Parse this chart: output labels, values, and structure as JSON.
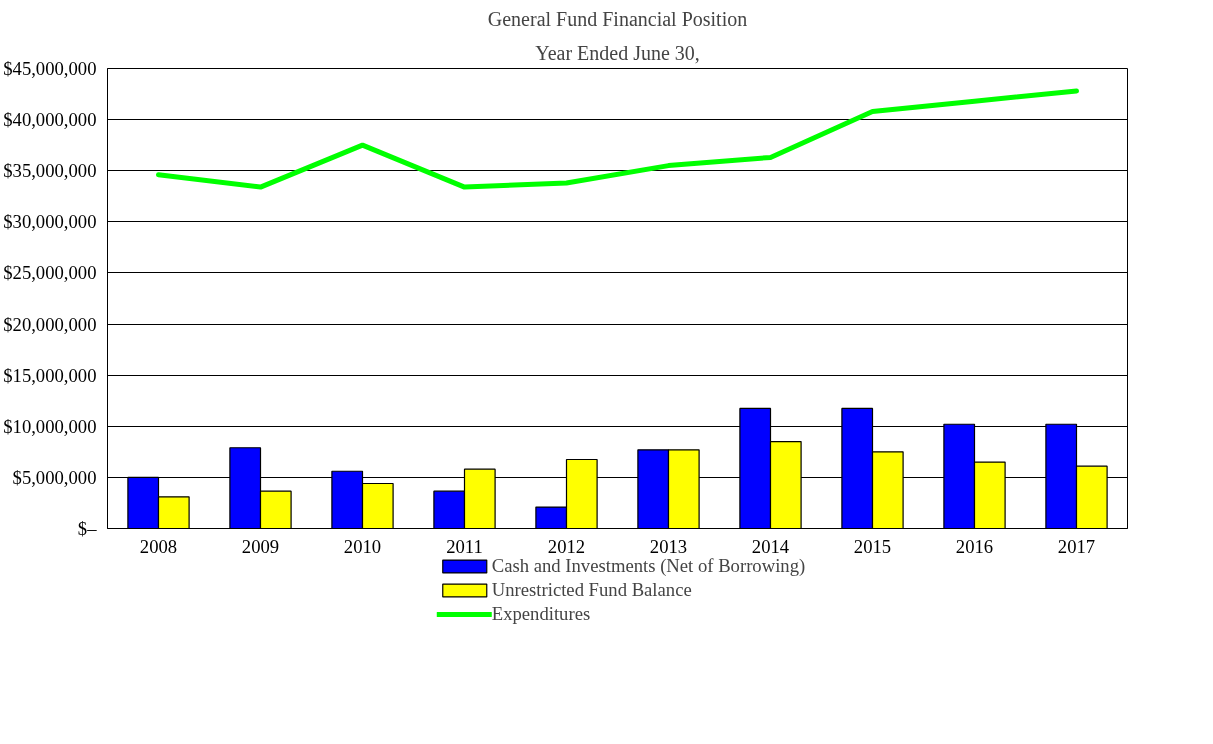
{
  "chart_data": {
    "type": "bar",
    "title": "General Fund Financial Position",
    "subtitle": "Year Ended June 30,",
    "categories": [
      "2008",
      "2009",
      "2010",
      "2011",
      "2012",
      "2013",
      "2014",
      "2015",
      "2016",
      "2017"
    ],
    "series": [
      {
        "name": "Cash and Investments (Net of Borrowing)",
        "color": "#0000ff",
        "values": [
          5000000,
          7900000,
          5600000,
          3650000,
          2100000,
          7700000,
          11750000,
          11750000,
          10200000,
          10200000
        ]
      },
      {
        "name": "Unrestricted Fund Balance",
        "color": "#ffff00",
        "values": [
          3100000,
          3650000,
          4400000,
          5800000,
          6750000,
          7700000,
          8500000,
          7500000,
          6500000,
          6100000
        ]
      },
      {
        "name": "Expenditures",
        "type": "line",
        "color": "#00ff00",
        "values": [
          34600000,
          33400000,
          37500000,
          33400000,
          33800000,
          35500000,
          36300000,
          40800000,
          41800000,
          42800000
        ]
      }
    ],
    "ylim": [
      0,
      45000000
    ],
    "yticks": [
      {
        "value": 0,
        "label": "$–"
      },
      {
        "value": 5000000,
        "label": "$5,000,000"
      },
      {
        "value": 10000000,
        "label": "$10,000,000"
      },
      {
        "value": 15000000,
        "label": "$15,000,000"
      },
      {
        "value": 20000000,
        "label": "$20,000,000"
      },
      {
        "value": 25000000,
        "label": "$25,000,000"
      },
      {
        "value": 30000000,
        "label": "$30,000,000"
      },
      {
        "value": 35000000,
        "label": "$35,000,000"
      },
      {
        "value": 40000000,
        "label": "$40,000,000"
      },
      {
        "value": 45000000,
        "label": "$45,000,000"
      }
    ],
    "grid": "y",
    "legend": "bottom",
    "line_style": "solid",
    "marker": "none"
  }
}
